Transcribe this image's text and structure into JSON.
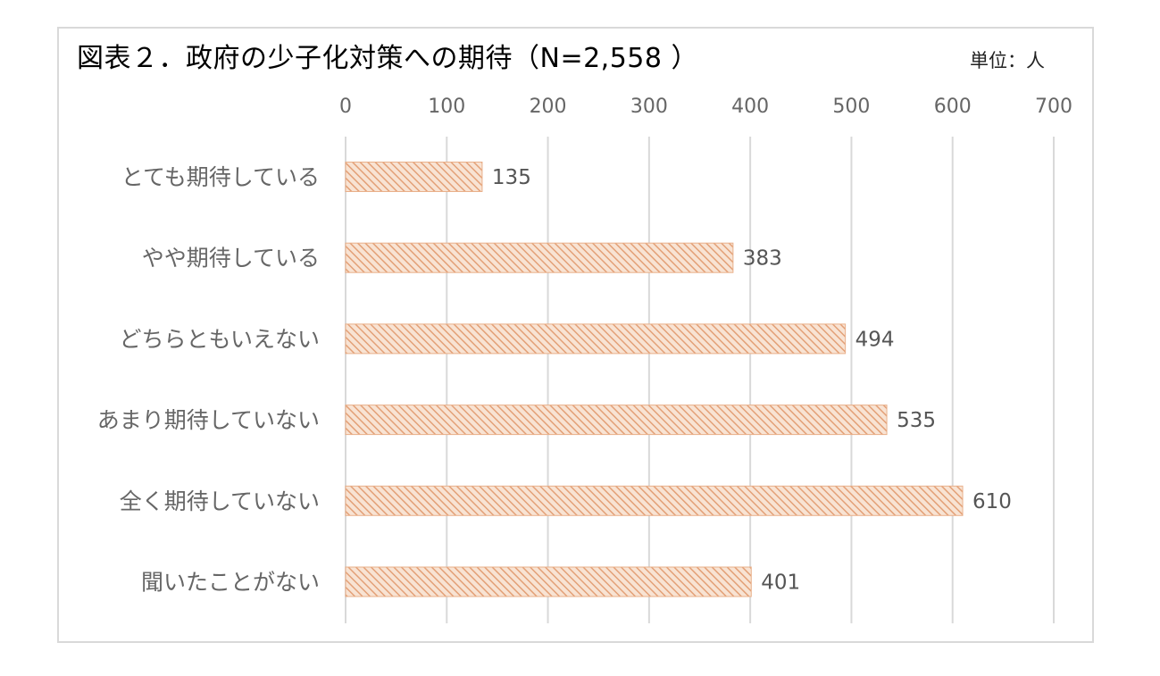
{
  "chart_data": {
    "type": "bar",
    "orientation": "horizontal",
    "title": "図表２．政府の少子化対策への期待（N=2,558 ）",
    "unit_label": "単位：人",
    "categories": [
      "とても期待している",
      "やや期待している",
      "どちらともいえない",
      "あまり期待していない",
      "全く期待していない",
      "聞いたことがない"
    ],
    "values": [
      135,
      383,
      494,
      535,
      610,
      401
    ],
    "xlim": [
      0,
      700
    ],
    "x_ticks": [
      0,
      100,
      200,
      300,
      400,
      500,
      600,
      700
    ],
    "x_axis_position": "top",
    "grid": true,
    "data_labels": true,
    "colors": {
      "bar_fill": "#f8e3d3",
      "bar_stripe": "#e3a077",
      "bar_border": "#e9b08a",
      "grid": "#d9d9d9"
    }
  }
}
